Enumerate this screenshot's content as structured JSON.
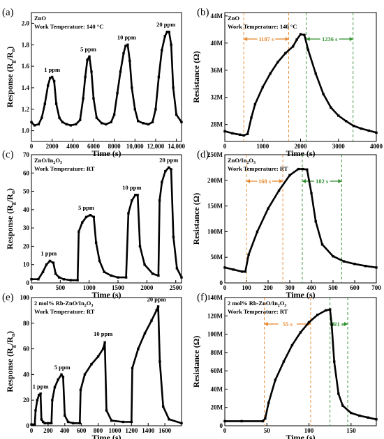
{
  "chart_data": [
    {
      "panel": "(a)",
      "type": "line",
      "material": "ZnO",
      "condition": "Work Temperature: 140 °C",
      "xlabel": "Time (s)",
      "ylabel": "Response (Rg/Ra)",
      "ylabel_main": "Response (R",
      "ylabel_sub1": "g",
      "ylabel_mid": "/R",
      "ylabel_sub2": "a",
      "ylabel_end": ")",
      "xlim": [
        0,
        14500
      ],
      "ylim": [
        0.9,
        2.1
      ],
      "xticks": [
        0,
        2000,
        4000,
        6000,
        8000,
        10000,
        12000,
        14000
      ],
      "xtick_labels": [
        "0",
        "2000",
        "4000",
        "6000",
        "8000",
        "10,000",
        "12,000",
        "14,000"
      ],
      "yticks": [
        1.0,
        1.2,
        1.4,
        1.6,
        1.8,
        2.0
      ],
      "ytick_labels": [
        "1.0",
        "1.2",
        "1.4",
        "1.6",
        "1.8",
        "2.0"
      ],
      "series": [
        {
          "x": [
            0,
            300,
            700,
            1000,
            1300,
            1600,
            1800,
            2000,
            2200,
            2400,
            2700,
            3000,
            3400,
            3800,
            4300,
            4700,
            5000,
            5200,
            5400,
            5600,
            5800,
            6000,
            6300,
            6800,
            7200,
            7700,
            8000,
            8300,
            8600,
            8900,
            9100,
            9300,
            9500,
            9700,
            10000,
            10300,
            10800,
            11300,
            11700,
            12000,
            12300,
            12600,
            12900,
            13100,
            13300,
            13500,
            13700,
            14000,
            14500
          ],
          "y": [
            1.08,
            1.05,
            1.06,
            1.12,
            1.25,
            1.42,
            1.49,
            1.5,
            1.46,
            1.25,
            1.12,
            1.08,
            1.06,
            1.05,
            1.06,
            1.1,
            1.3,
            1.5,
            1.66,
            1.69,
            1.55,
            1.3,
            1.12,
            1.07,
            1.06,
            1.08,
            1.15,
            1.35,
            1.55,
            1.72,
            1.79,
            1.8,
            1.65,
            1.4,
            1.2,
            1.09,
            1.07,
            1.06,
            1.08,
            1.2,
            1.5,
            1.75,
            1.88,
            1.92,
            1.92,
            1.8,
            1.4,
            1.15,
            1.08
          ]
        }
      ],
      "annotations": [
        {
          "text": "1 ppm",
          "x": 2000,
          "y": 1.55
        },
        {
          "text": "5 ppm",
          "x": 5500,
          "y": 1.74
        },
        {
          "text": "10 ppm",
          "x": 9200,
          "y": 1.85
        },
        {
          "text": "20 ppm",
          "x": 13000,
          "y": 1.97
        }
      ]
    },
    {
      "panel": "(b)",
      "type": "line",
      "material": "ZnO",
      "condition": "Work Temperature: 140 °C",
      "xlabel": "Time (s)",
      "ylabel": "Resistance (Ω)",
      "xlim": [
        0,
        4000
      ],
      "ylim": [
        25.5,
        44.5
      ],
      "xticks": [
        0,
        1000,
        2000,
        3000,
        4000
      ],
      "xtick_labels": [
        "0",
        "1000",
        "2000",
        "3000",
        "4000"
      ],
      "yticks": [
        28,
        32,
        36,
        40,
        44
      ],
      "ytick_labels": [
        "28M",
        "32M",
        "36M",
        "40M",
        "44M"
      ],
      "series": [
        {
          "x": [
            0,
            200,
            400,
            500,
            600,
            700,
            800,
            1000,
            1200,
            1400,
            1600,
            1800,
            1900,
            2000,
            2100,
            2200,
            2400,
            2600,
            2800,
            3000,
            3200,
            3400,
            3600,
            3800,
            4000
          ],
          "y": [
            27.0,
            26.7,
            26.5,
            26.4,
            26.6,
            29.0,
            31.0,
            33.5,
            35.5,
            37.2,
            38.5,
            39.5,
            40.5,
            41.3,
            41.2,
            39.0,
            35.5,
            32.5,
            30.5,
            29.3,
            28.5,
            27.8,
            27.4,
            27.1,
            26.8
          ]
        }
      ],
      "markers": [
        {
          "text": "1187 s",
          "x1": 500,
          "x2": 1687,
          "color": "#E8852A"
        },
        {
          "text": "1236 s",
          "x1": 2150,
          "x2": 3386,
          "color": "#2F8F2F"
        }
      ]
    },
    {
      "panel": "(c)",
      "type": "line",
      "material": "ZnO/In2O3",
      "material_main": "ZnO/In",
      "material_sub1": "2",
      "material_mid": "O",
      "material_sub2": "3",
      "condition": "Work Temperature: RT",
      "xlabel": "Time (s)",
      "ylabel": "Response (Rg/Ra)",
      "ylabel_main": "Response (R",
      "ylabel_sub1": "g",
      "ylabel_mid": "/R",
      "ylabel_sub2": "a",
      "ylabel_end": ")",
      "xlim": [
        0,
        2600
      ],
      "ylim": [
        0,
        70
      ],
      "xticks": [
        0,
        500,
        1000,
        1500,
        2000,
        2500
      ],
      "xtick_labels": [
        "0",
        "500",
        "1000",
        "1500",
        "2000",
        "2500"
      ],
      "yticks": [
        0,
        10,
        20,
        30,
        40,
        50,
        60,
        70
      ],
      "ytick_labels": [
        "0",
        "10",
        "20",
        "30",
        "40",
        "50",
        "60",
        "70"
      ],
      "series": [
        {
          "x": [
            0,
            120,
            200,
            260,
            320,
            380,
            420,
            480,
            560,
            680,
            800,
            820,
            880,
            950,
            1020,
            1080,
            1120,
            1180,
            1260,
            1380,
            1500,
            1640,
            1680,
            1740,
            1800,
            1840,
            1880,
            1960,
            2100,
            2200,
            2220,
            2260,
            2320,
            2380,
            2420,
            2460,
            2520,
            2600
          ],
          "y": [
            2,
            2,
            6,
            10,
            12,
            11,
            5,
            3,
            2,
            1.5,
            1.5,
            28,
            33,
            36,
            37,
            36,
            22,
            12,
            6,
            4,
            3,
            3,
            38,
            45,
            48,
            48,
            20,
            10,
            5,
            4,
            45,
            55,
            61,
            63,
            62,
            25,
            8,
            3
          ]
        }
      ],
      "annotations": [
        {
          "text": "1 ppm",
          "x": 300,
          "y": 15
        },
        {
          "text": "5 ppm",
          "x": 950,
          "y": 40
        },
        {
          "text": "10 ppm",
          "x": 1740,
          "y": 51
        },
        {
          "text": "20 ppm",
          "x": 2380,
          "y": 66
        }
      ]
    },
    {
      "panel": "(d)",
      "type": "line",
      "material": "ZnO/In2O3",
      "material_main": "ZnO/In",
      "material_sub1": "2",
      "material_mid": "O",
      "material_sub2": "3",
      "condition": "Work Temperature: RT",
      "xlabel": "Time (s)",
      "ylabel": "Resistance (Ω)",
      "xlim": [
        0,
        700
      ],
      "ylim": [
        0,
        250
      ],
      "xticks": [
        0,
        100,
        200,
        300,
        400,
        500,
        600,
        700
      ],
      "xtick_labels": [
        "0",
        "100",
        "200",
        "300",
        "400",
        "500",
        "600",
        "700"
      ],
      "yticks": [
        0,
        50,
        100,
        150,
        200,
        250
      ],
      "ytick_labels": [
        "0",
        "50M",
        "100M",
        "150M",
        "200M",
        "250M"
      ],
      "series": [
        {
          "x": [
            0,
            40,
            80,
            95,
            110,
            150,
            200,
            250,
            300,
            340,
            360,
            380,
            400,
            420,
            450,
            500,
            550,
            600,
            650,
            700
          ],
          "y": [
            30,
            26,
            22,
            22,
            55,
            100,
            145,
            180,
            210,
            222,
            222,
            221,
            175,
            120,
            75,
            52,
            42,
            37,
            33,
            30
          ]
        }
      ],
      "markers": [
        {
          "text": "168 s",
          "x1": 100,
          "x2": 268,
          "color": "#E8852A"
        },
        {
          "text": "182 s",
          "x1": 358,
          "x2": 540,
          "color": "#2F8F2F"
        }
      ]
    },
    {
      "panel": "(e)",
      "type": "line",
      "material": "2 mol% Rb-ZnO/In2O3",
      "material_main": "2 mol% Rb-ZnO/In",
      "material_sub1": "2",
      "material_mid": "O",
      "material_sub2": "3",
      "condition": "Work Temperature: RT",
      "xlabel": "Time (s)",
      "ylabel": "Response (Rg/Ra)",
      "ylabel_main": "Response (R",
      "ylabel_sub1": "g",
      "ylabel_mid": "/R",
      "ylabel_sub2": "a",
      "ylabel_end": ")",
      "xlim": [
        0,
        1800
      ],
      "ylim": [
        0,
        100
      ],
      "xticks": [
        0,
        200,
        400,
        600,
        800,
        1000,
        1200,
        1400,
        1600
      ],
      "xtick_labels": [
        "0",
        "200",
        "400",
        "600",
        "800",
        "1000",
        "1200",
        "1400",
        "1600"
      ],
      "yticks": [
        0,
        20,
        40,
        60,
        80,
        100
      ],
      "ytick_labels": [
        "0",
        "20",
        "40",
        "60",
        "80",
        "100"
      ],
      "series": [
        {
          "x": [
            0,
            40,
            50,
            70,
            90,
            110,
            120,
            140,
            160,
            200,
            240,
            250,
            280,
            320,
            360,
            380,
            400,
            440,
            500,
            580,
            590,
            640,
            720,
            800,
            860,
            880,
            900,
            960,
            1100,
            1200,
            1210,
            1280,
            1360,
            1440,
            1500,
            1520,
            1540,
            1580,
            1650,
            1800
          ],
          "y": [
            1,
            1,
            12,
            20,
            24,
            25,
            5,
            3,
            2,
            2,
            2,
            20,
            30,
            36,
            40,
            38,
            8,
            3,
            2,
            2,
            28,
            40,
            48,
            54,
            60,
            65,
            12,
            4,
            3,
            3,
            45,
            60,
            72,
            82,
            90,
            93,
            50,
            15,
            5,
            2
          ]
        }
      ],
      "annotations": [
        {
          "text": "1 ppm",
          "x": 110,
          "y": 29
        },
        {
          "text": "5 ppm",
          "x": 370,
          "y": 44
        },
        {
          "text": "10 ppm",
          "x": 860,
          "y": 70
        },
        {
          "text": "20 ppm",
          "x": 1500,
          "y": 97
        }
      ]
    },
    {
      "panel": "(f)",
      "type": "line",
      "material": "2 mol% Rb-ZnO/In2O3",
      "material_main": "2 mol% Rb-ZnO/In",
      "material_sub1": "2",
      "material_mid": "O",
      "material_sub2": "3",
      "condition": "Work Temperature: RT",
      "xlabel": "Time (s)",
      "ylabel": "Resistance (Ω)",
      "xlim": [
        0,
        180
      ],
      "ylim": [
        0,
        140
      ],
      "xticks": [
        0,
        50,
        100,
        150
      ],
      "xtick_labels": [
        "0",
        "50",
        "100",
        "150"
      ],
      "yticks": [
        0,
        20,
        40,
        60,
        80,
        100,
        120,
        140
      ],
      "ytick_labels": [
        "0",
        "20M",
        "40M",
        "60M",
        "80M",
        "100M",
        "120M",
        "140M"
      ],
      "series": [
        {
          "x": [
            0,
            20,
            45,
            48,
            52,
            60,
            70,
            80,
            90,
            100,
            110,
            120,
            125,
            127,
            130,
            135,
            140,
            150,
            160,
            170,
            180
          ],
          "y": [
            5,
            5,
            5,
            8,
            25,
            50,
            70,
            88,
            102,
            113,
            121,
            126,
            127,
            110,
            70,
            35,
            22,
            14,
            11,
            9,
            7
          ]
        }
      ],
      "markers": [
        {
          "text": "55 s",
          "x1": 47,
          "x2": 102,
          "color": "#E8852A"
        },
        {
          "text": "21 s",
          "x1": 125,
          "x2": 146,
          "color": "#2F8F2F"
        }
      ]
    }
  ]
}
